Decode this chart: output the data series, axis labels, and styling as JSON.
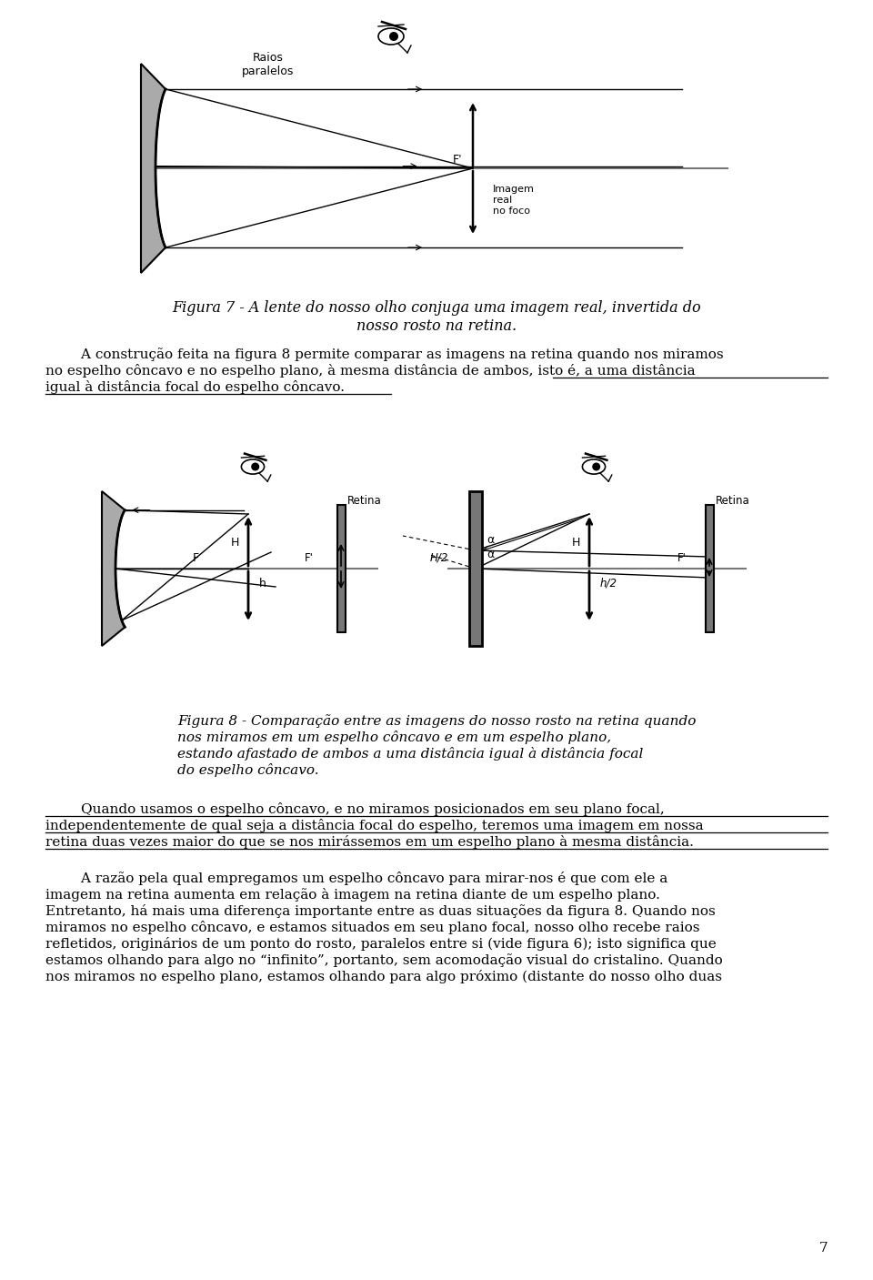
{
  "bg_color": "#ffffff",
  "text_color": "#000000",
  "fig7_caption": "Figura 7 - A lente do nosso olho conjuga uma imagem real, invertida do\nnosso rosto na retina.",
  "fig8_caption_line1": "Figura 8 - Comparação entre as imagens do nosso rosto na retina quando",
  "fig8_caption_line2": "nos miramos em um espelho côncavo e em um espelho plano,",
  "fig8_caption_line3": "estando afastado de ambos a uma distância igual à distância focal",
  "fig8_caption_line4": "do espelho côncavo.",
  "para2_line1": "        Quando usamos o espelho côncavo, e no miramos posicionados em seu plano focal,",
  "para2_line2": "independentemente de qual seja a distância focal do espelho, teremos uma imagem em nossa",
  "para2_line3": "retina duas vezes maior do que se nos mirássemos em um espelho plano à mesma distância.",
  "para3_lines": [
    "        A razão pela qual empregamos um espelho côncavo para mirar-nos é que com ele a",
    "imagem na retina aumenta em relação à imagem na retina diante de um espelho plano.",
    "Entretanto, há mais uma diferença importante entre as duas situações da figura 8. Quando nos",
    "miramos no espelho côncavo, e estamos situados em seu plano focal, nosso olho recebe raios",
    "refletidos, originários de um ponto do rosto, paralelos entre si (vide figura 6); isto significa que",
    "estamos olhando para algo no “infinito”, portanto, sem acomodação visual do cristalino. Quando",
    "nos miramos no espelho plano, estamos olhando para algo próximo (distante do nosso olho duas"
  ],
  "page_number": "7",
  "mirror_gray": "#aaaaaa",
  "axis_gray": "#888888",
  "retina_gray": "#777777"
}
